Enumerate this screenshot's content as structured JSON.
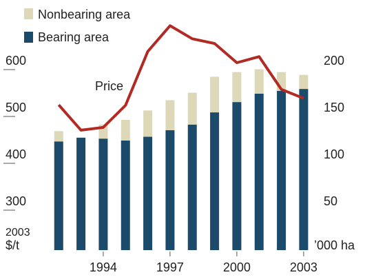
{
  "chart_data": {
    "type": "bar-line",
    "legend": [
      "Nonbearing area",
      "Bearing area"
    ],
    "annotation": "Price",
    "ylabel": [
      "2003",
      "$/t"
    ],
    "y2label": "’000 ha",
    "x": [
      1992,
      1993,
      1994,
      1995,
      1996,
      1997,
      1998,
      1999,
      2000,
      2001,
      2002,
      2003
    ],
    "xlim": [
      1990.6,
      2003.9
    ],
    "xticks": [
      1994,
      1997,
      2000,
      2003
    ],
    "ylim": [
      200,
      700
    ],
    "yticks": [
      300,
      400,
      500,
      600
    ],
    "y2lim": [
      0,
      250
    ],
    "y2ticks": [
      50,
      100,
      150,
      200
    ],
    "series": [
      {
        "name": "Bearing area",
        "color": "#1b4a6b",
        "axis": "y2",
        "kind": "bar",
        "values": [
          116,
          120,
          119,
          117,
          121,
          128,
          134,
          147,
          158,
          167,
          170,
          172
        ]
      },
      {
        "name": "Nonbearing area",
        "color": "#ddd9b8",
        "axis": "y2",
        "kind": "bar",
        "values": [
          11,
          0,
          15,
          22,
          28,
          32,
          34,
          38,
          32,
          26,
          20,
          15
        ]
      },
      {
        "name": "Price",
        "color": "#b22a24",
        "axis": "y",
        "kind": "line",
        "values": [
          510,
          456,
          462,
          509,
          624,
          679,
          651,
          641,
          600,
          613,
          543,
          524
        ]
      }
    ]
  }
}
